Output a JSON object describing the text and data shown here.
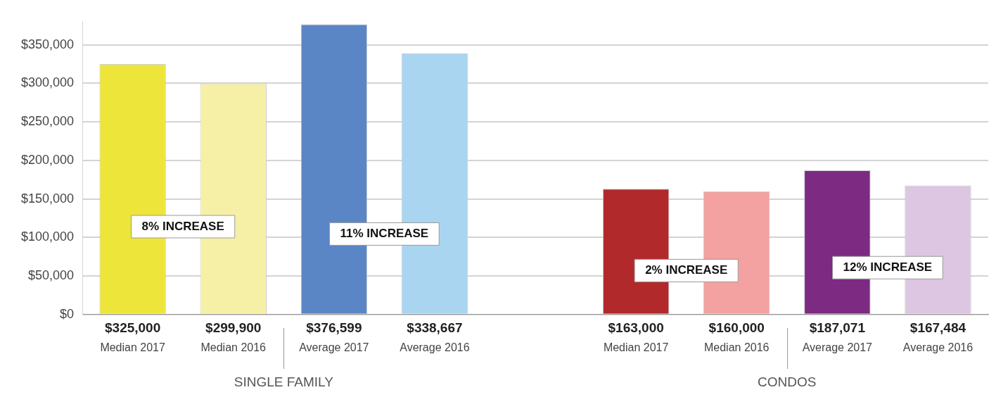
{
  "chart_data": {
    "type": "bar",
    "categories": [
      "Median 2017",
      "Median 2016",
      "Average 2017",
      "Average 2016",
      null,
      "Median 2017",
      "Median 2016",
      "Average 2017",
      "Average 2016"
    ],
    "values": [
      325000,
      299900,
      376599,
      338667,
      null,
      163000,
      160000,
      187071,
      167484
    ],
    "value_labels": [
      "$325,000",
      "$299,900",
      "$376,599",
      "$338,667",
      null,
      "$163,000",
      "$160,000",
      "$187,071",
      "$167,484"
    ],
    "colors": [
      "#eee53a",
      "#f6f0a6",
      "#5b86c6",
      "#a9d5f1",
      "#ffffff",
      "#b2292b",
      "#f3a1a1",
      "#7c2a82",
      "#dcc6e2"
    ],
    "ylim": [
      0,
      380000
    ],
    "yticks": [
      {
        "value": 0,
        "label": "$0"
      },
      {
        "value": 50000,
        "label": "$50,000"
      },
      {
        "value": 100000,
        "label": "$100,000"
      },
      {
        "value": 150000,
        "label": "$150,000"
      },
      {
        "value": 200000,
        "label": "$200,000"
      },
      {
        "value": 250000,
        "label": "$250,000"
      },
      {
        "value": 300000,
        "label": "$300,000"
      },
      {
        "value": 350000,
        "label": "$350,000"
      }
    ],
    "grid": "y",
    "legend": false,
    "annotations": [
      "8% INCREASE",
      "11% INCREASE",
      "2% INCREASE",
      "12% INCREASE",
      "SINGLE FAMILY",
      "CONDOS"
    ]
  }
}
